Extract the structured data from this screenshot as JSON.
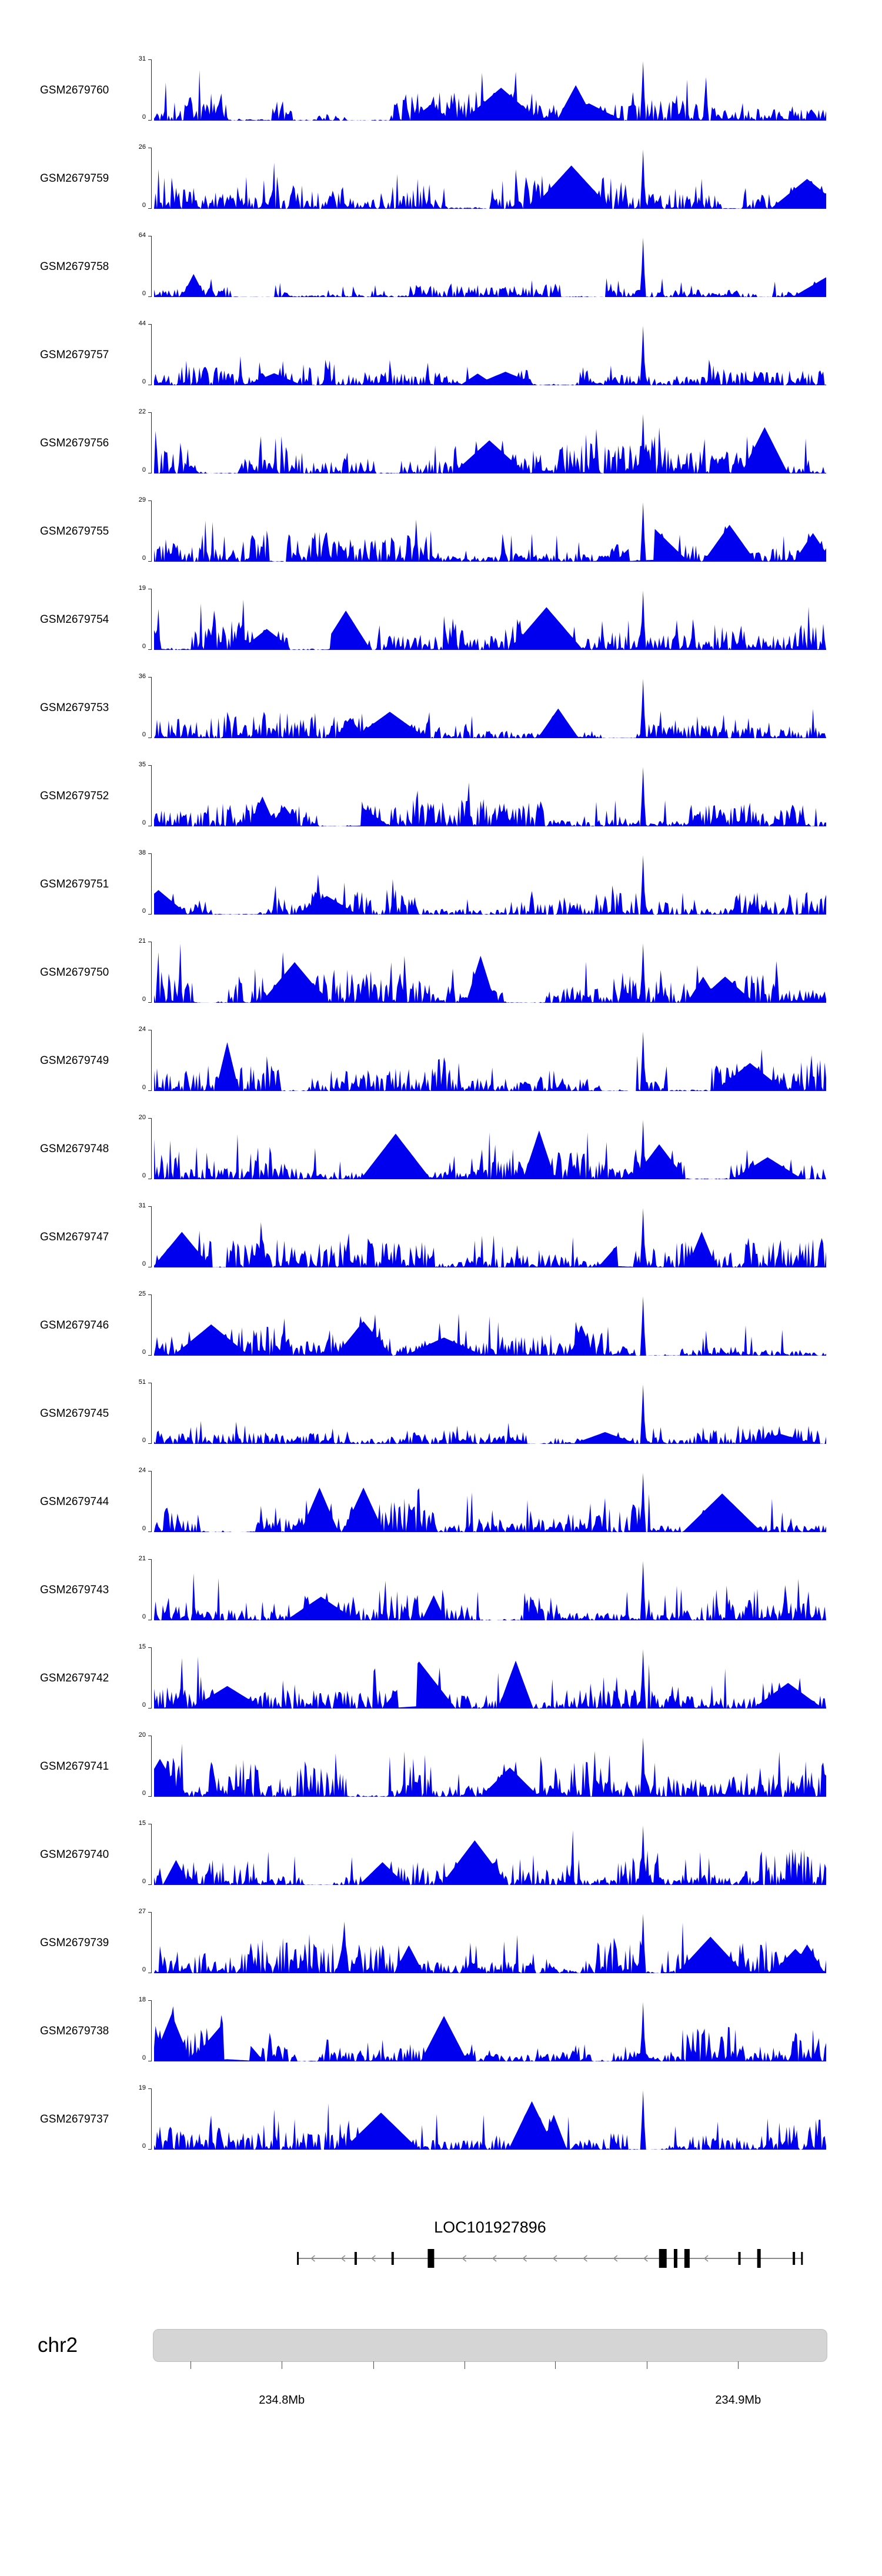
{
  "chart_data": {
    "type": "area",
    "title": "",
    "signal_color": "#0000EE",
    "n_tracks": 24,
    "tracks": [
      {
        "label": "GSM2679760",
        "ymax": 31,
        "ymin": 0
      },
      {
        "label": "GSM2679759",
        "ymax": 26,
        "ymin": 0
      },
      {
        "label": "GSM2679758",
        "ymax": 64,
        "ymin": 0
      },
      {
        "label": "GSM2679757",
        "ymax": 44,
        "ymin": 0
      },
      {
        "label": "GSM2679756",
        "ymax": 22,
        "ymin": 0
      },
      {
        "label": "GSM2679755",
        "ymax": 29,
        "ymin": 0
      },
      {
        "label": "GSM2679754",
        "ymax": 19,
        "ymin": 0
      },
      {
        "label": "GSM2679753",
        "ymax": 36,
        "ymin": 0
      },
      {
        "label": "GSM2679752",
        "ymax": 35,
        "ymin": 0
      },
      {
        "label": "GSM2679751",
        "ymax": 38,
        "ymin": 0
      },
      {
        "label": "GSM2679750",
        "ymax": 21,
        "ymin": 0
      },
      {
        "label": "GSM2679749",
        "ymax": 24,
        "ymin": 0
      },
      {
        "label": "GSM2679748",
        "ymax": 20,
        "ymin": 0
      },
      {
        "label": "GSM2679747",
        "ymax": 31,
        "ymin": 0
      },
      {
        "label": "GSM2679746",
        "ymax": 25,
        "ymin": 0
      },
      {
        "label": "GSM2679745",
        "ymax": 51,
        "ymin": 0
      },
      {
        "label": "GSM2679744",
        "ymax": 24,
        "ymin": 0
      },
      {
        "label": "GSM2679743",
        "ymax": 21,
        "ymin": 0
      },
      {
        "label": "GSM2679742",
        "ymax": 15,
        "ymin": 0
      },
      {
        "label": "GSM2679741",
        "ymax": 20,
        "ymin": 0
      },
      {
        "label": "GSM2679740",
        "ymax": 15,
        "ymin": 0
      },
      {
        "label": "GSM2679739",
        "ymax": 27,
        "ymin": 0
      },
      {
        "label": "GSM2679738",
        "ymax": 18,
        "ymin": 0
      },
      {
        "label": "GSM2679737",
        "ymax": 19,
        "ymin": 0
      }
    ],
    "main_peak_fraction": 0.725,
    "gene_track": {
      "label": "LOC101927896",
      "strand": "reverse",
      "line_start": 0.214,
      "line_end": 0.964,
      "exons": [
        {
          "pos": 0.214,
          "width": 3,
          "kind": "thin"
        },
        {
          "pos": 0.3,
          "width": 4,
          "kind": "thin"
        },
        {
          "pos": 0.355,
          "width": 4,
          "kind": "thin"
        },
        {
          "pos": 0.412,
          "width": 11,
          "kind": "thick"
        },
        {
          "pos": 0.757,
          "width": 13,
          "kind": "thick"
        },
        {
          "pos": 0.776,
          "width": 6,
          "kind": "thick"
        },
        {
          "pos": 0.793,
          "width": 9,
          "kind": "thick"
        },
        {
          "pos": 0.871,
          "width": 4,
          "kind": "thin"
        },
        {
          "pos": 0.9,
          "width": 6,
          "kind": "thick"
        },
        {
          "pos": 0.952,
          "width": 4,
          "kind": "thin"
        },
        {
          "pos": 0.964,
          "width": 3,
          "kind": "thin"
        }
      ]
    },
    "ideogram": {
      "label": "chr2",
      "color": "#d5d5d5"
    },
    "axis": {
      "ticks": [
        {
          "pos": 0.054,
          "label": ""
        },
        {
          "pos": 0.19,
          "label": "234.8Mb"
        },
        {
          "pos": 0.326,
          "label": ""
        },
        {
          "pos": 0.462,
          "label": ""
        },
        {
          "pos": 0.597,
          "label": ""
        },
        {
          "pos": 0.733,
          "label": ""
        },
        {
          "pos": 0.869,
          "label": "234.9Mb"
        }
      ]
    }
  }
}
